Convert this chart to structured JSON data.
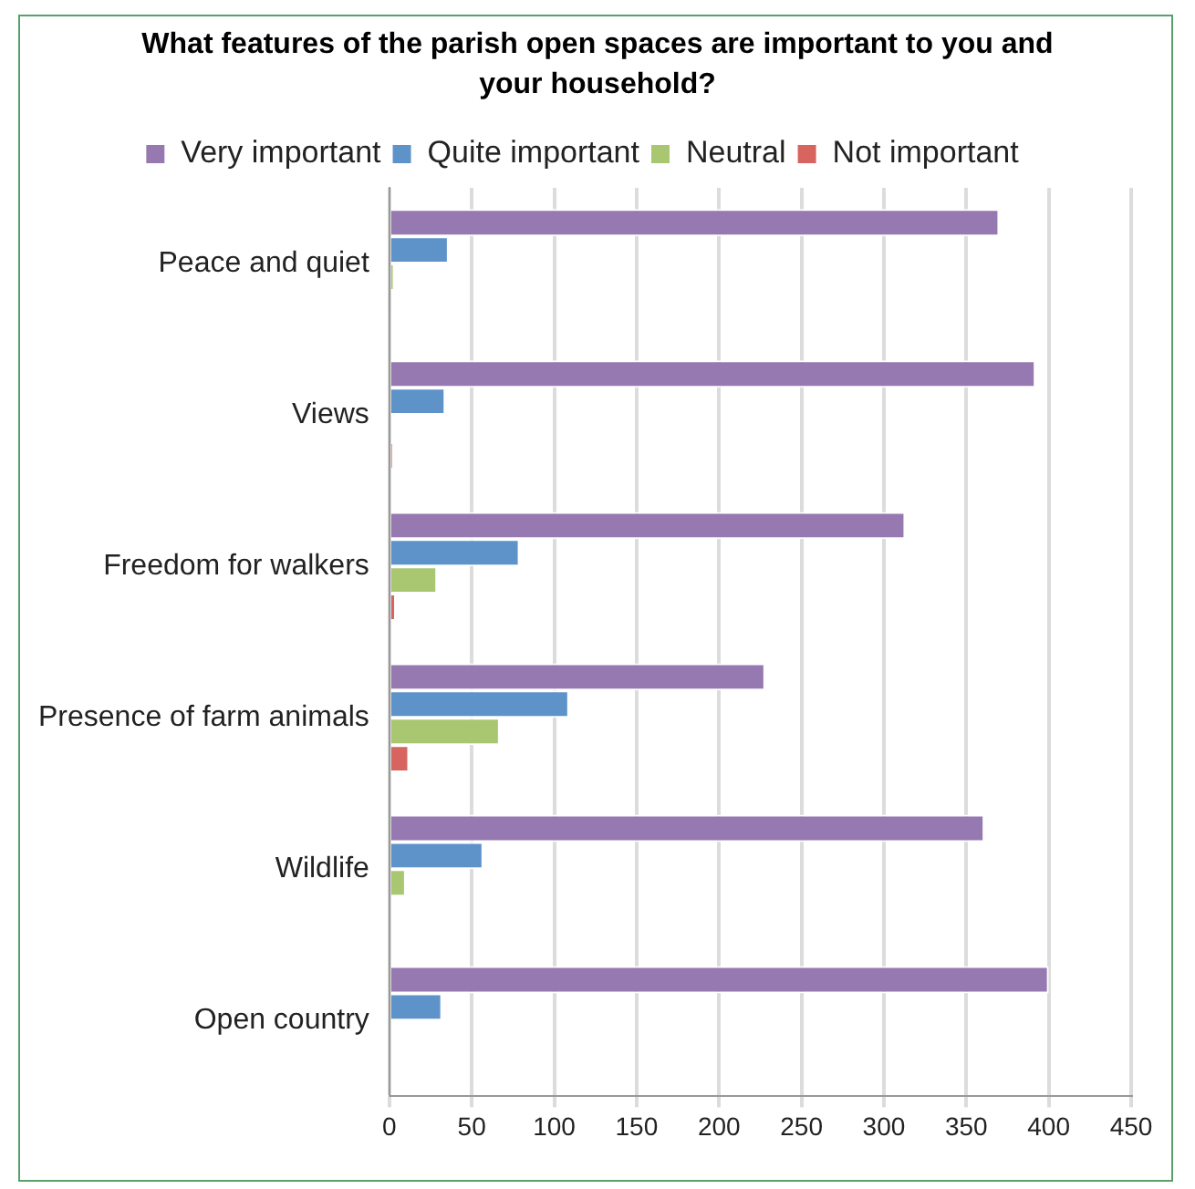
{
  "chart_data": {
    "type": "bar",
    "orientation": "horizontal",
    "title": "What features of the parish open spaces are important to you and your household?",
    "categories": [
      "Peace and quiet",
      "Views",
      "Freedom for walkers",
      "Presence of farm animals",
      "Wildlife",
      "Open country"
    ],
    "series": [
      {
        "name": "Very important",
        "color": "#9779b1",
        "values": [
          370,
          392,
          313,
          228,
          361,
          400
        ]
      },
      {
        "name": "Quite important",
        "color": "#5d93c9",
        "values": [
          36,
          34,
          79,
          109,
          57,
          32
        ]
      },
      {
        "name": "Neutral",
        "color": "#a9c770",
        "values": [
          3,
          1,
          29,
          67,
          10,
          0
        ]
      },
      {
        "name": "Not important",
        "color": "#d8645f",
        "values": [
          1,
          2,
          4,
          12,
          0,
          0
        ]
      }
    ],
    "xlim": [
      0,
      450
    ],
    "xticks": [
      0,
      50,
      100,
      150,
      200,
      250,
      300,
      350,
      400,
      450
    ],
    "grid": "x",
    "legend": "top"
  }
}
